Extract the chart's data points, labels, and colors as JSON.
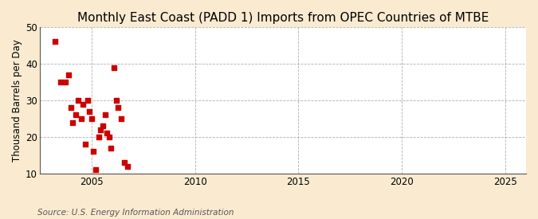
{
  "title": "Monthly East Coast (PADD 1) Imports from OPEC Countries of MTBE",
  "ylabel": "Thousand Barrels per Day",
  "source": "Source: U.S. Energy Information Administration",
  "figure_bg_color": "#faebd0",
  "plot_bg_color": "#ffffff",
  "scatter_color": "#cc0000",
  "xlim": [
    2002.5,
    2026
  ],
  "ylim": [
    10,
    50
  ],
  "xticks": [
    2005,
    2010,
    2015,
    2020,
    2025
  ],
  "yticks": [
    10,
    20,
    30,
    40,
    50
  ],
  "data_x": [
    2003.25,
    2003.5,
    2003.75,
    2003.9,
    2004.0,
    2004.1,
    2004.25,
    2004.35,
    2004.5,
    2004.6,
    2004.7,
    2004.8,
    2004.9,
    2005.0,
    2005.1,
    2005.2,
    2005.35,
    2005.45,
    2005.55,
    2005.65,
    2005.75,
    2005.85,
    2005.95,
    2006.1,
    2006.2,
    2006.3,
    2006.45,
    2006.6,
    2006.75
  ],
  "data_y": [
    46,
    35,
    35,
    37,
    28,
    24,
    26,
    30,
    25,
    29,
    18,
    30,
    27,
    25,
    16,
    11,
    20,
    22,
    23,
    26,
    21,
    20,
    17,
    39,
    30,
    28,
    25,
    13,
    12
  ],
  "marker_size": 14,
  "marker": "s",
  "title_fontsize": 11,
  "label_fontsize": 8.5,
  "tick_fontsize": 8.5,
  "source_fontsize": 7.5
}
